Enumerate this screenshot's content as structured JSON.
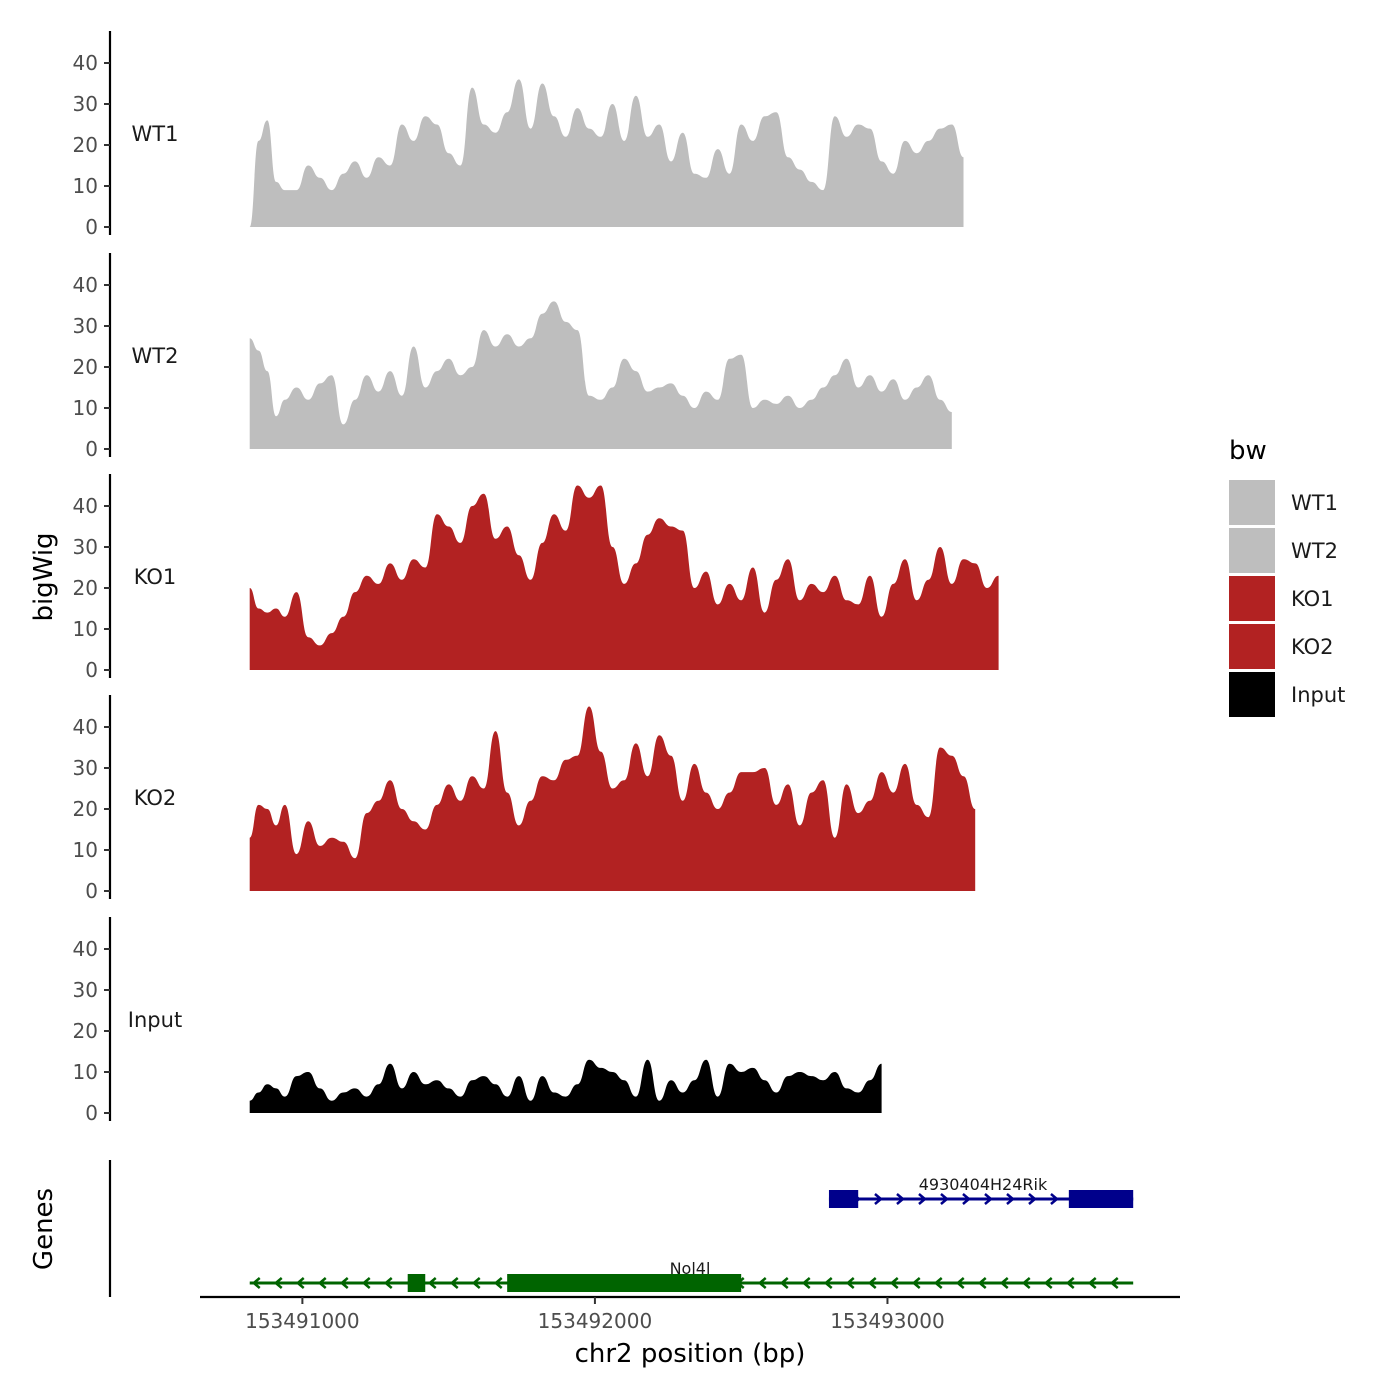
{
  "chart_data": {
    "type": "area",
    "xlabel": "chr2 position (bp)",
    "ylabel_tracks": "bigWig",
    "ylabel_genes": "Genes",
    "xlim": [
      153490650,
      153494000
    ],
    "ylim": [
      0,
      47
    ],
    "x_ticks": [
      153491000,
      153492000,
      153493000
    ],
    "x_tick_labels": [
      "153491000",
      "153492000",
      "153493000"
    ],
    "y_ticks": [
      0,
      10,
      20,
      30,
      40
    ],
    "y_tick_labels": [
      "0",
      "10",
      "20",
      "30",
      "40"
    ],
    "legend": {
      "title": "bw",
      "placement": "right",
      "items": [
        {
          "label": "WT1",
          "color": "#bebebe"
        },
        {
          "label": "WT2",
          "color": "#bebebe"
        },
        {
          "label": "KO1",
          "color": "#b22222"
        },
        {
          "label": "KO2",
          "color": "#b22222"
        },
        {
          "label": "Input",
          "color": "#000000"
        }
      ]
    },
    "series": [
      {
        "name": "WT1",
        "color": "#bebebe",
        "x": [
          153490820,
          153490850,
          153490880,
          153490910,
          153490940,
          153490980,
          153491020,
          153491060,
          153491100,
          153491140,
          153491180,
          153491220,
          153491260,
          153491300,
          153491340,
          153491380,
          153491420,
          153491460,
          153491500,
          153491540,
          153491580,
          153491620,
          153491660,
          153491700,
          153491740,
          153491780,
          153491820,
          153491860,
          153491900,
          153491940,
          153491980,
          153492020,
          153492060,
          153492100,
          153492140,
          153492180,
          153492220,
          153492260,
          153492300,
          153492340,
          153492380,
          153492420,
          153492460,
          153492500,
          153492540,
          153492580,
          153492620,
          153492660,
          153492700,
          153492740,
          153492780,
          153492820,
          153492860,
          153492900,
          153492940,
          153492980,
          153493020,
          153493060,
          153493100,
          153493140,
          153493180,
          153493220,
          153493260,
          153493300,
          153493340,
          153493380,
          153493420,
          153493460,
          153493500,
          153493540,
          153493580,
          153493620,
          153493660,
          153493700,
          153493740,
          153493780,
          153493820
        ],
        "values": [
          0,
          21,
          26,
          11,
          9,
          9,
          15,
          12,
          9,
          13,
          16,
          12,
          17,
          15,
          25,
          21,
          27,
          25,
          18,
          15,
          34,
          25,
          23,
          28,
          36,
          24,
          35,
          27,
          22,
          29,
          24,
          22,
          30,
          21,
          32,
          22,
          25,
          16,
          23,
          13,
          12,
          19,
          13,
          25,
          21,
          27,
          28,
          17,
          14,
          11,
          9,
          27,
          22,
          25,
          24,
          16,
          13,
          21,
          18,
          21,
          24,
          25,
          17,
          0,
          0,
          0,
          0,
          0,
          0,
          0,
          0,
          0,
          0,
          0,
          0,
          0,
          0
        ]
      },
      {
        "name": "WT2",
        "color": "#bebebe",
        "x": [
          153490820,
          153490850,
          153490880,
          153490910,
          153490940,
          153490980,
          153491020,
          153491060,
          153491100,
          153491140,
          153491180,
          153491220,
          153491260,
          153491300,
          153491340,
          153491380,
          153491420,
          153491460,
          153491500,
          153491540,
          153491580,
          153491620,
          153491660,
          153491700,
          153491740,
          153491780,
          153491820,
          153491860,
          153491900,
          153491940,
          153491980,
          153492020,
          153492060,
          153492100,
          153492140,
          153492180,
          153492220,
          153492260,
          153492300,
          153492340,
          153492380,
          153492420,
          153492460,
          153492500,
          153492540,
          153492580,
          153492620,
          153492660,
          153492700,
          153492740,
          153492780,
          153492820,
          153492860,
          153492900,
          153492940,
          153492980,
          153493020,
          153493060,
          153493100,
          153493140,
          153493180,
          153493220,
          153493260,
          153493300,
          153493340,
          153493380,
          153493420,
          153493460,
          153493500,
          153493540,
          153493580,
          153493620,
          153493660,
          153493700,
          153493740,
          153493780,
          153493840
        ],
        "values": [
          27,
          24,
          19,
          8,
          12,
          15,
          12,
          16,
          18,
          6,
          12,
          18,
          14,
          19,
          13,
          25,
          15,
          19,
          22,
          18,
          20,
          29,
          25,
          28,
          25,
          27,
          33,
          36,
          31,
          29,
          13,
          12,
          15,
          22,
          19,
          14,
          15,
          16,
          13,
          10,
          14,
          12,
          22,
          23,
          10,
          12,
          11,
          13,
          10,
          12,
          15,
          18,
          22,
          15,
          18,
          14,
          17,
          12,
          15,
          18,
          12,
          9,
          0,
          0,
          0,
          0,
          0,
          0,
          0,
          0,
          0,
          0,
          0,
          0,
          0,
          0,
          0
        ]
      },
      {
        "name": "KO1",
        "color": "#b22222",
        "x": [
          153490820,
          153490850,
          153490880,
          153490910,
          153490940,
          153490980,
          153491020,
          153491060,
          153491100,
          153491140,
          153491180,
          153491220,
          153491260,
          153491300,
          153491340,
          153491380,
          153491420,
          153491460,
          153491500,
          153491540,
          153491580,
          153491620,
          153491660,
          153491700,
          153491740,
          153491780,
          153491820,
          153491860,
          153491900,
          153491940,
          153491980,
          153492020,
          153492060,
          153492100,
          153492140,
          153492180,
          153492220,
          153492260,
          153492300,
          153492340,
          153492380,
          153492420,
          153492460,
          153492500,
          153492540,
          153492580,
          153492620,
          153492660,
          153492700,
          153492740,
          153492780,
          153492820,
          153492860,
          153492900,
          153492940,
          153492980,
          153493020,
          153493060,
          153493100,
          153493140,
          153493180,
          153493220,
          153493260,
          153493300,
          153493340,
          153493380,
          153493420,
          153493460,
          153493500,
          153493540,
          153493580,
          153493620,
          153493660,
          153493700,
          153493740,
          153493780,
          153493820
        ],
        "values": [
          20,
          15,
          14,
          15,
          13,
          19,
          8,
          6,
          9,
          13,
          19,
          23,
          21,
          26,
          22,
          27,
          25,
          38,
          35,
          31,
          40,
          43,
          32,
          35,
          28,
          22,
          31,
          38,
          34,
          45,
          42,
          45,
          30,
          21,
          26,
          33,
          37,
          35,
          34,
          20,
          24,
          16,
          21,
          17,
          25,
          14,
          22,
          27,
          17,
          21,
          19,
          23,
          17,
          16,
          23,
          13,
          21,
          27,
          17,
          22,
          30,
          21,
          27,
          26,
          20,
          23,
          0,
          0,
          0,
          0,
          0,
          0,
          0,
          0,
          0,
          0,
          0
        ]
      },
      {
        "name": "KO2",
        "color": "#b22222",
        "x": [
          153490820,
          153490850,
          153490880,
          153490910,
          153490940,
          153490980,
          153491020,
          153491060,
          153491100,
          153491140,
          153491180,
          153491220,
          153491260,
          153491300,
          153491340,
          153491380,
          153491420,
          153491460,
          153491500,
          153491540,
          153491580,
          153491620,
          153491660,
          153491700,
          153491740,
          153491780,
          153491820,
          153491860,
          153491900,
          153491940,
          153491980,
          153492020,
          153492060,
          153492100,
          153492140,
          153492180,
          153492220,
          153492260,
          153492300,
          153492340,
          153492380,
          153492420,
          153492460,
          153492500,
          153492540,
          153492580,
          153492620,
          153492660,
          153492700,
          153492740,
          153492780,
          153492820,
          153492860,
          153492900,
          153492940,
          153492980,
          153493020,
          153493060,
          153493100,
          153493140,
          153493180,
          153493220,
          153493260,
          153493300,
          153493340,
          153493380,
          153493420,
          153493460,
          153493500,
          153493540,
          153493580,
          153493620,
          153493660,
          153493700,
          153493740,
          153493780,
          153493820
        ],
        "values": [
          13,
          21,
          20,
          16,
          21,
          9,
          17,
          11,
          13,
          12,
          8,
          19,
          22,
          27,
          20,
          17,
          15,
          21,
          26,
          22,
          28,
          25,
          39,
          24,
          16,
          22,
          28,
          27,
          32,
          33,
          45,
          34,
          25,
          27,
          36,
          28,
          38,
          33,
          22,
          31,
          24,
          20,
          24,
          29,
          29,
          30,
          21,
          26,
          16,
          24,
          27,
          13,
          26,
          19,
          22,
          29,
          24,
          31,
          21,
          18,
          35,
          33,
          28,
          20,
          0,
          0,
          0,
          0,
          0,
          0,
          0,
          0,
          0,
          0,
          0,
          0,
          0
        ]
      },
      {
        "name": "Input",
        "color": "#000000",
        "x": [
          153490820,
          153490850,
          153490880,
          153490910,
          153490940,
          153490980,
          153491020,
          153491060,
          153491100,
          153491140,
          153491180,
          153491220,
          153491260,
          153491300,
          153491340,
          153491380,
          153491420,
          153491460,
          153491500,
          153491540,
          153491580,
          153491620,
          153491660,
          153491700,
          153491740,
          153491780,
          153491820,
          153491860,
          153491900,
          153491940,
          153491980,
          153492020,
          153492060,
          153492100,
          153492140,
          153492180,
          153492220,
          153492260,
          153492300,
          153492340,
          153492380,
          153492420,
          153492460,
          153492500,
          153492540,
          153492580,
          153492620,
          153492660,
          153492700,
          153492740,
          153492780,
          153492820,
          153492860,
          153492900,
          153492940,
          153492980,
          153493020,
          153493060,
          153493100,
          153493140,
          153493180,
          153493220,
          153493260,
          153493300,
          153493340,
          153493380,
          153493420,
          153493460,
          153493500,
          153493540,
          153493580,
          153493620,
          153493660,
          153493700,
          153493740,
          153493780,
          153493820
        ],
        "values": [
          3,
          5,
          7,
          6,
          4,
          9,
          10,
          6,
          3,
          5,
          6,
          4,
          7,
          12,
          6,
          10,
          7,
          8,
          6,
          4,
          8,
          9,
          7,
          4,
          9,
          3,
          9,
          5,
          4,
          7,
          13,
          11,
          10,
          8,
          4,
          13,
          3,
          8,
          5,
          8,
          13,
          4,
          12,
          10,
          11,
          8,
          5,
          9,
          10,
          9,
          8,
          10,
          6,
          5,
          8,
          12,
          0,
          0,
          0,
          0,
          0,
          0,
          0,
          0,
          0,
          0,
          0,
          0,
          0,
          0,
          0,
          0,
          0,
          0,
          0,
          0,
          0
        ]
      }
    ],
    "genes": [
      {
        "name": "4930404H24Rik",
        "strand": "+",
        "color": "#00008b",
        "start": 153492800,
        "end": 153493840,
        "exons": [
          [
            153492800,
            153492900
          ],
          [
            153493620,
            153493840
          ]
        ]
      },
      {
        "name": "Nol4l",
        "strand": "-",
        "color": "#006400",
        "start": 153490820,
        "end": 153493840,
        "exons": [
          [
            153491360,
            153491420
          ],
          [
            153491700,
            153492500
          ]
        ]
      }
    ]
  }
}
